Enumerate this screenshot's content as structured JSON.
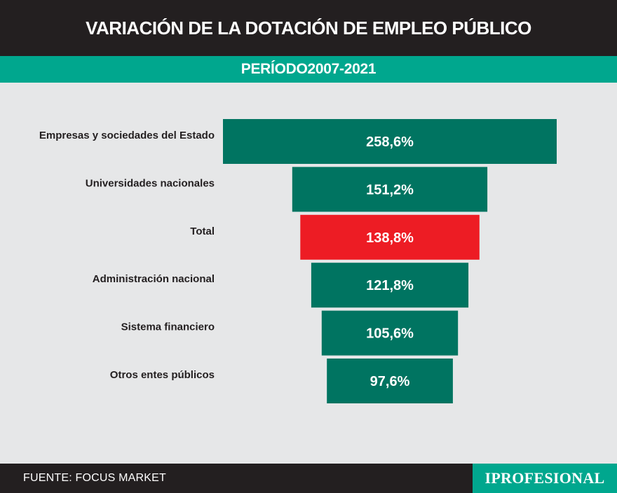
{
  "header": {
    "title": "VARIACIÓN DE LA DOTACIÓN DE EMPLEO PÚBLICO",
    "subtitle": "PERÍODO2007-2021"
  },
  "colors": {
    "bar": "#007461",
    "highlight": "#ed1c24",
    "header_bg": "#231f20",
    "accent": "#00a78e",
    "background": "#e6e7e8"
  },
  "chart_data": {
    "type": "bar",
    "orientation": "horizontal-centered",
    "categories": [
      "Empresas y sociedades del Estado",
      "Universidades nacionales",
      "Total",
      "Administración nacional",
      "Sistema financiero",
      "Otros entes públicos"
    ],
    "values": [
      258.6,
      151.2,
      138.8,
      121.8,
      105.6,
      97.6
    ],
    "value_labels": [
      "258,6%",
      "151,2%",
      "138,8%",
      "121,8%",
      "105,6%",
      "97,6%"
    ],
    "highlight_category": "Total",
    "unit": "%"
  },
  "footer": {
    "source": "FUENTE: FOCUS MARKET",
    "brand": "IPROFESIONAL"
  }
}
